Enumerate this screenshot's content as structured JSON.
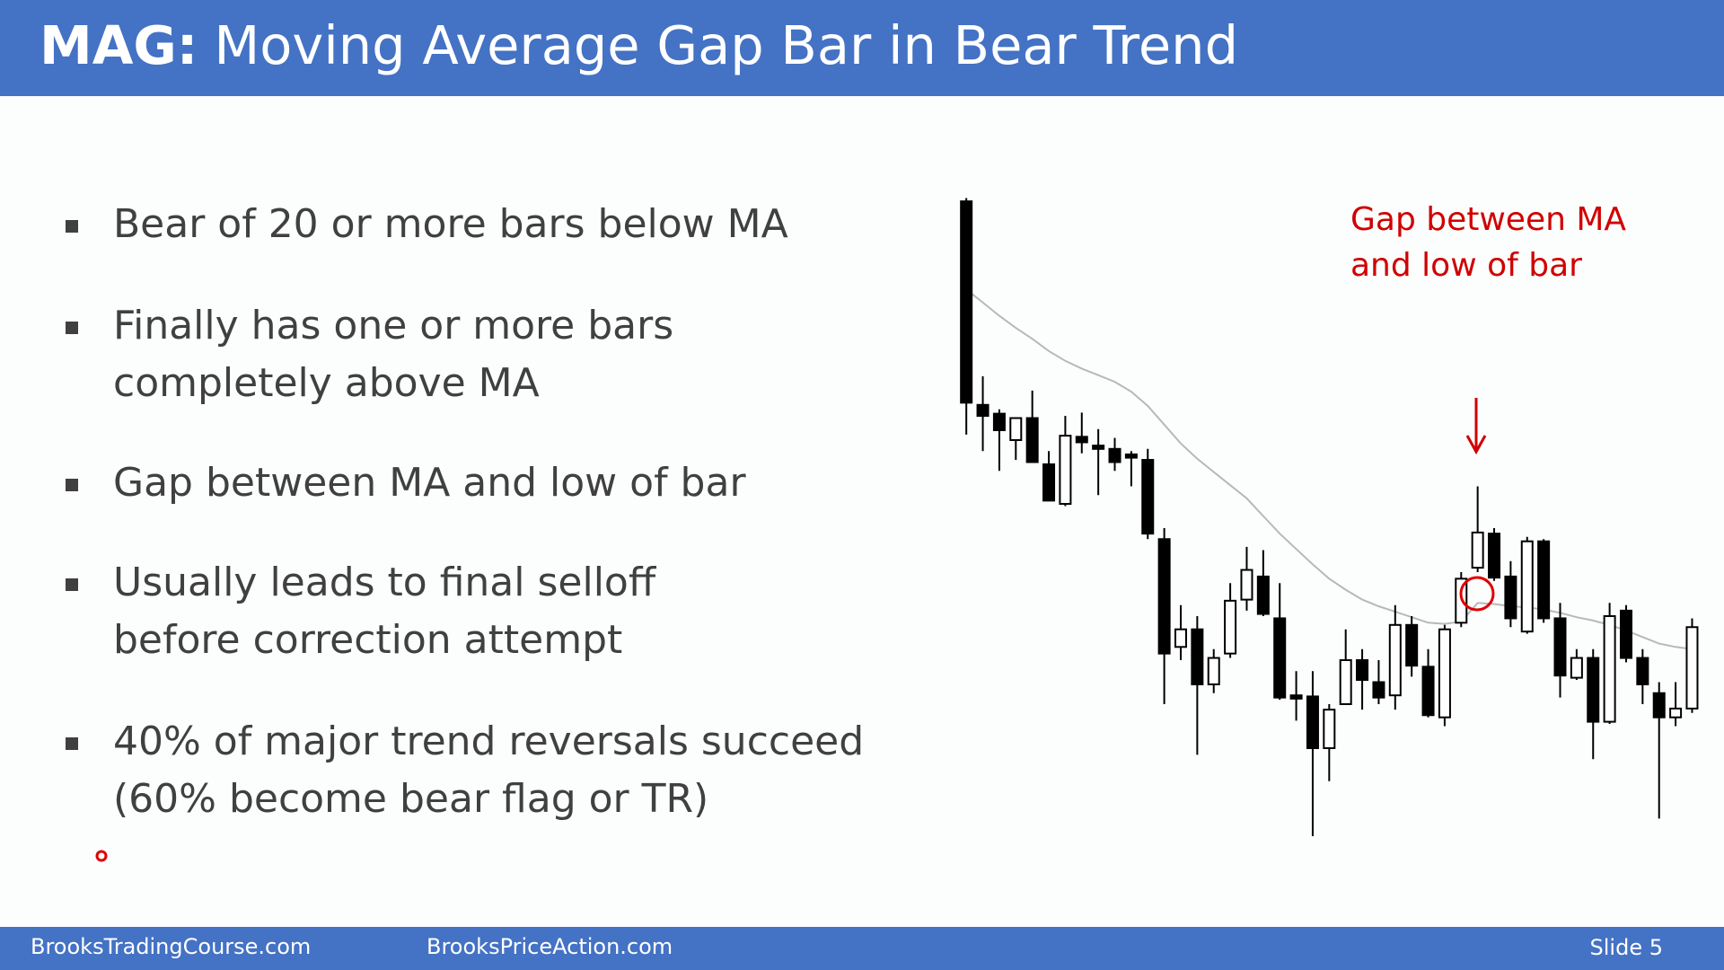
{
  "header": {
    "title_bold": "MAG:",
    "title_rest": "Moving Average Gap Bar in Bear Trend"
  },
  "bullets": [
    [
      "Bear of 20 or more bars below MA"
    ],
    [
      "Finally has one or more bars",
      "completely above MA"
    ],
    [
      "Gap between MA and low of bar"
    ],
    [
      "Usually leads to final selloff",
      "before correction attempt"
    ],
    [
      "40% of major trend reversals succeed",
      "(60% become bear flag or TR)"
    ]
  ],
  "annotation": [
    "Gap between MA",
    "and low of bar"
  ],
  "footer": {
    "left": "BrooksTradingCourse.com",
    "middle": "BrooksPriceAction.com",
    "right": "Slide 5"
  },
  "chart_data": {
    "type": "candlestick",
    "open": [
      617,
      432,
      424,
      400,
      420,
      378,
      342,
      403,
      395,
      392,
      387,
      382,
      310,
      212,
      228,
      178,
      206,
      255,
      276,
      238,
      168,
      167,
      120,
      160,
      200,
      180,
      168,
      232,
      194,
      148,
      234,
      284,
      315,
      276,
      226,
      308,
      238,
      184,
      202,
      144,
      245,
      202,
      170,
      148,
      156
    ],
    "high": [
      620,
      458,
      428,
      420,
      445,
      390,
      422,
      425,
      410,
      402,
      390,
      392,
      320,
      250,
      240,
      210,
      270,
      303,
      300,
      270,
      190,
      190,
      160,
      228,
      210,
      200,
      250,
      240,
      210,
      232,
      280,
      358,
      320,
      290,
      312,
      310,
      252,
      210,
      210,
      252,
      250,
      210,
      180,
      180,
      238
    ],
    "low": [
      405,
      390,
      372,
      382,
      380,
      345,
      340,
      388,
      350,
      372,
      358,
      310,
      160,
      200,
      114,
      170,
      202,
      245,
      240,
      164,
      145,
      40,
      90,
      160,
      155,
      160,
      155,
      185,
      148,
      140,
      230,
      280,
      272,
      230,
      224,
      234,
      166,
      182,
      110,
      142,
      198,
      160,
      56,
      140,
      152
    ],
    "close": [
      434,
      422,
      409,
      420,
      380,
      345,
      404,
      398,
      392,
      380,
      384,
      315,
      206,
      228,
      178,
      202,
      254,
      282,
      242,
      166,
      165,
      120,
      155,
      200,
      182,
      166,
      232,
      195,
      150,
      228,
      274,
      316,
      275,
      238,
      308,
      238,
      186,
      202,
      144,
      240,
      202,
      178,
      148,
      156,
      230
    ],
    "ma": [
      537,
      525,
      513,
      502,
      492,
      481,
      472,
      465,
      459,
      453,
      444,
      431,
      414,
      397,
      383,
      371,
      359,
      347,
      331,
      315,
      301,
      287,
      274,
      264,
      255,
      249,
      244,
      239,
      234,
      233,
      235,
      252,
      251,
      249,
      248,
      246,
      243,
      239,
      236,
      232,
      227,
      221,
      215,
      212,
      210
    ],
    "ylim": [
      40,
      640
    ],
    "bear_color": "#000000",
    "bull_color": "#ffffff",
    "ma_color": "#b8b8b8"
  }
}
